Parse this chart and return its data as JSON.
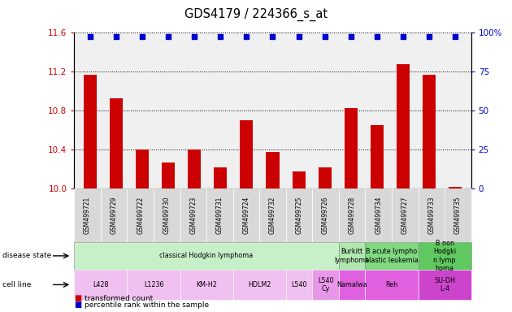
{
  "title": "GDS4179 / 224366_s_at",
  "samples": [
    "GSM499721",
    "GSM499729",
    "GSM499722",
    "GSM499730",
    "GSM499723",
    "GSM499731",
    "GSM499724",
    "GSM499732",
    "GSM499725",
    "GSM499726",
    "GSM499728",
    "GSM499734",
    "GSM499727",
    "GSM499733",
    "GSM499735"
  ],
  "transformed_count": [
    11.17,
    10.93,
    10.4,
    10.27,
    10.4,
    10.22,
    10.7,
    10.38,
    10.18,
    10.22,
    10.83,
    10.65,
    11.28,
    11.17,
    10.02
  ],
  "percentile": [
    99,
    97,
    91,
    90,
    92,
    90,
    93,
    91,
    90,
    90,
    95,
    93,
    97,
    95,
    87
  ],
  "ylim_left": [
    10.0,
    11.6
  ],
  "ylim_right": [
    0,
    100
  ],
  "yticks_left": [
    10.0,
    10.4,
    10.8,
    11.2,
    11.6
  ],
  "yticks_right": [
    0,
    25,
    50,
    75,
    100
  ],
  "disease_state_groups": [
    {
      "label": "classical Hodgkin lymphoma",
      "start": 0,
      "end": 10,
      "color": "#c8f0c8"
    },
    {
      "label": "Burkitt\nlymphoma",
      "start": 10,
      "end": 11,
      "color": "#b0e8b0"
    },
    {
      "label": "B acute lympho\nblastic leukemia",
      "start": 11,
      "end": 13,
      "color": "#80d880"
    },
    {
      "label": "B non\nHodgki\nn lymp\nhoma",
      "start": 13,
      "end": 15,
      "color": "#60c860"
    }
  ],
  "cell_line_groups": [
    {
      "label": "L428",
      "start": 0,
      "end": 2,
      "color": "#f0c0f0"
    },
    {
      "label": "L1236",
      "start": 2,
      "end": 4,
      "color": "#f0c0f0"
    },
    {
      "label": "KM-H2",
      "start": 4,
      "end": 6,
      "color": "#f0c0f0"
    },
    {
      "label": "HDLM2",
      "start": 6,
      "end": 8,
      "color": "#f0c0f0"
    },
    {
      "label": "L540",
      "start": 8,
      "end": 9,
      "color": "#f0c0f0"
    },
    {
      "label": "L540\nCy",
      "start": 9,
      "end": 10,
      "color": "#e898e8"
    },
    {
      "label": "Namalwa",
      "start": 10,
      "end": 11,
      "color": "#e060e0"
    },
    {
      "label": "Reh",
      "start": 11,
      "end": 13,
      "color": "#e060e0"
    },
    {
      "label": "SU-DH\nL-4",
      "start": 13,
      "end": 15,
      "color": "#cc44cc"
    }
  ],
  "bar_color": "#cc0000",
  "dot_color": "#0000cc",
  "left_axis_color": "#cc0000",
  "right_axis_color": "#0000cc",
  "bg_color": "#ffffff",
  "xticklabel_bg": "#d0d0d0",
  "grid_color": "#000000"
}
